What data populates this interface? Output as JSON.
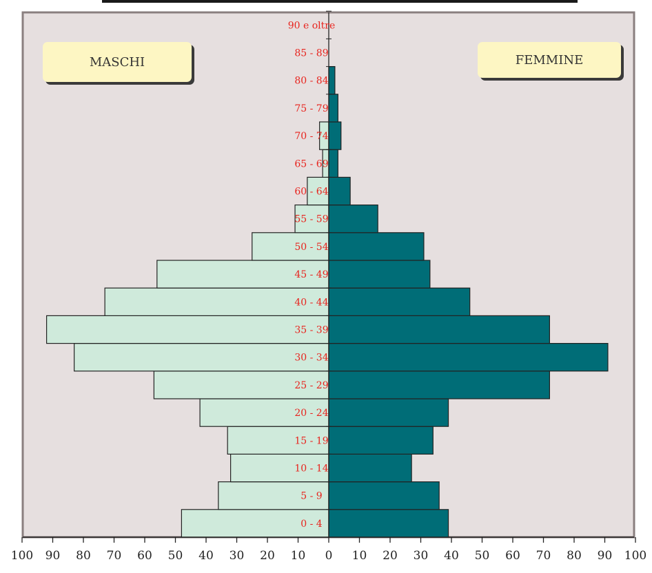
{
  "chart_data": {
    "type": "bar",
    "orientation": "horizontal",
    "subtype": "population-pyramid",
    "categories": [
      "0 - 4",
      "5 - 9",
      "10 - 14",
      "15 - 19",
      "20 - 24",
      "25 - 29",
      "30 - 34",
      "35 - 39",
      "40 - 44",
      "45 - 49",
      "50 - 54",
      "55 - 59",
      "60 - 64",
      "65 - 69",
      "70 - 74",
      "75 - 79",
      "80 - 84",
      "85 - 89",
      "90 e oltre"
    ],
    "series": [
      {
        "name": "MASCHI",
        "values": [
          48,
          36,
          32,
          33,
          42,
          57,
          83,
          92,
          73,
          56,
          25,
          11,
          7,
          2,
          3,
          0,
          0,
          0,
          0
        ]
      },
      {
        "name": "FEMMINE",
        "values": [
          39,
          36,
          27,
          34,
          39,
          72,
          91,
          72,
          46,
          33,
          31,
          16,
          7,
          3,
          4,
          3,
          2,
          0,
          0
        ]
      }
    ],
    "xlim": [
      -100,
      100
    ],
    "xticks": [
      "100",
      "90",
      "80",
      "70",
      "60",
      "50",
      "40",
      "30",
      "20",
      "10",
      "0",
      "10",
      "20",
      "30",
      "40",
      "50",
      "60",
      "70",
      "80",
      "90",
      "100"
    ],
    "grid": false,
    "legend_labels": [
      "MASCHI",
      "FEMMINE"
    ],
    "legend_placement": "top-left and top-right boxes",
    "colors": {
      "maschi": "#cfeadb",
      "femmine": "#006d77",
      "plot_background": "#e6dfdf",
      "plot_border": "#8a7f7f",
      "age_label": "#e8231d",
      "legend_box": "#fdf6c3",
      "top_bar": "#1a1a1a"
    }
  }
}
